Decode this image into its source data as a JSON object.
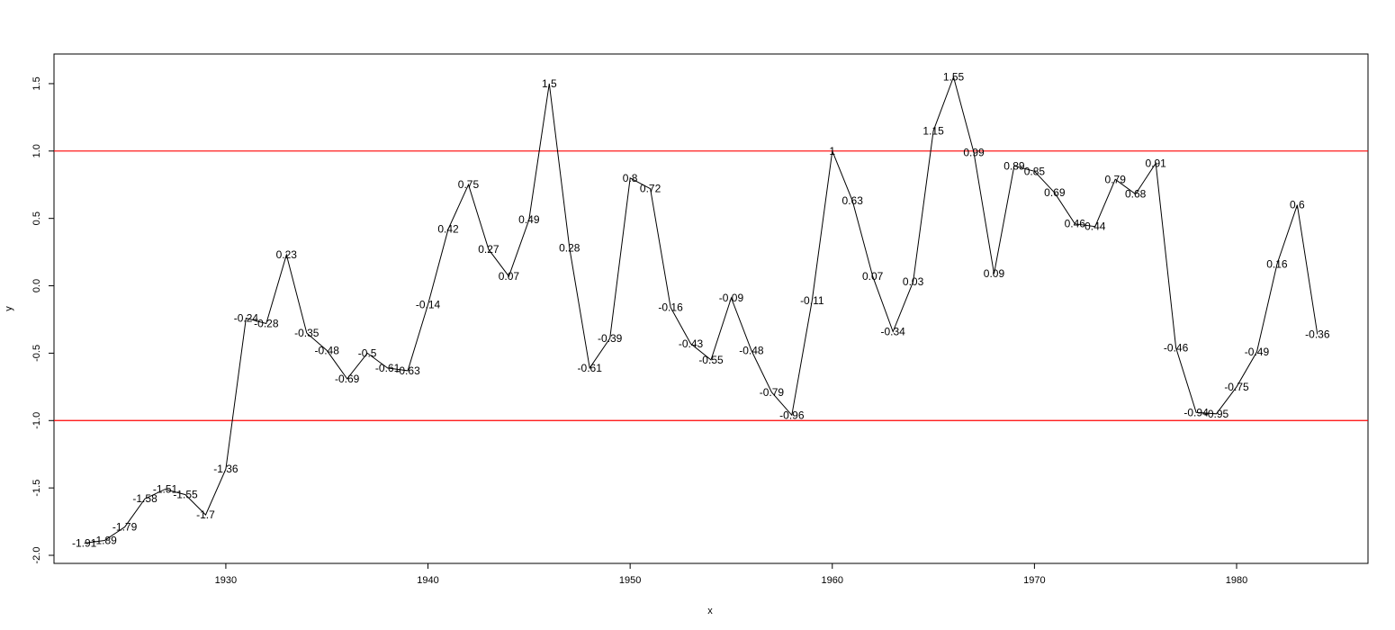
{
  "chart_data": {
    "type": "line",
    "title": "",
    "xlabel": "x",
    "ylabel": "y",
    "xlim": [
      1921.5,
      1986.5
    ],
    "ylim": [
      -2.06,
      1.72
    ],
    "xticks": [
      1930,
      1940,
      1950,
      1960,
      1970,
      1980
    ],
    "yticks": [
      -2.0,
      -1.5,
      -1.0,
      -0.5,
      0.0,
      0.5,
      1.0,
      1.5
    ],
    "ytick_labels": [
      "-2.0",
      "-1.5",
      "-1.0",
      "-0.5",
      "0.0",
      "0.5",
      "1.0",
      "1.5"
    ],
    "grid": false,
    "line_color": "#000000",
    "reference_lines": [
      {
        "y": 1.0,
        "color": "#ff0000"
      },
      {
        "y": -1.0,
        "color": "#ff0000"
      }
    ],
    "x": [
      1923,
      1924,
      1925,
      1926,
      1927,
      1928,
      1929,
      1930,
      1931,
      1932,
      1933,
      1934,
      1935,
      1936,
      1937,
      1938,
      1939,
      1940,
      1941,
      1942,
      1943,
      1944,
      1945,
      1946,
      1947,
      1948,
      1949,
      1950,
      1951,
      1952,
      1953,
      1954,
      1955,
      1956,
      1957,
      1958,
      1959,
      1960,
      1961,
      1962,
      1963,
      1964,
      1965,
      1966,
      1967,
      1968,
      1969,
      1970,
      1971,
      1972,
      1973,
      1974,
      1975,
      1976,
      1977,
      1978,
      1979,
      1980,
      1981,
      1982,
      1983,
      1984
    ],
    "y": [
      -1.91,
      -1.89,
      -1.79,
      -1.58,
      -1.51,
      -1.55,
      -1.7,
      -1.36,
      -0.24,
      -0.28,
      0.23,
      -0.35,
      -0.48,
      -0.69,
      -0.5,
      -0.61,
      -0.63,
      -0.14,
      0.42,
      0.75,
      0.27,
      0.07,
      0.49,
      1.5,
      0.28,
      -0.61,
      -0.39,
      0.8,
      0.72,
      -0.16,
      -0.43,
      -0.55,
      -0.09,
      -0.48,
      -0.79,
      -0.96,
      -0.11,
      1,
      0.63,
      0.07,
      -0.34,
      0.03,
      1.15,
      1.55,
      0.99,
      0.09,
      0.89,
      0.85,
      0.69,
      0.46,
      0.44,
      0.79,
      0.68,
      0.91,
      -0.46,
      -0.94,
      -0.95,
      -0.75,
      -0.49,
      0.16,
      0.6,
      -0.36
    ],
    "labels": [
      "-1.91",
      "-1.89",
      "-1.79",
      "-1.58",
      "-1.51",
      "-1.55",
      "-1.7",
      "-1.36",
      "-0.24",
      "-0.28",
      "0.23",
      "-0.35",
      "-0.48",
      "-0.69",
      "-0.5",
      "-0.61",
      "-0.63",
      "-0.14",
      "0.42",
      "0.75",
      "0.27",
      "0.07",
      "0.49",
      "1.5",
      "0.28",
      "-0.61",
      "-0.39",
      "0.8",
      "0.72",
      "-0.16",
      "-0.43",
      "-0.55",
      "-0.09",
      "-0.48",
      "-0.79",
      "-0.96",
      "-0.11",
      "1",
      "0.63",
      "0.07",
      "-0.34",
      "0.03",
      "1.15",
      "1.55",
      "0.99",
      "0.09",
      "0.89",
      "0.85",
      "0.69",
      "0.46",
      "0.44",
      "0.79",
      "0.68",
      "0.91",
      "-0.46",
      "-0.94",
      "-0.95",
      "-0.75",
      "-0.49",
      "0.16",
      "0.6",
      "-0.36"
    ]
  }
}
